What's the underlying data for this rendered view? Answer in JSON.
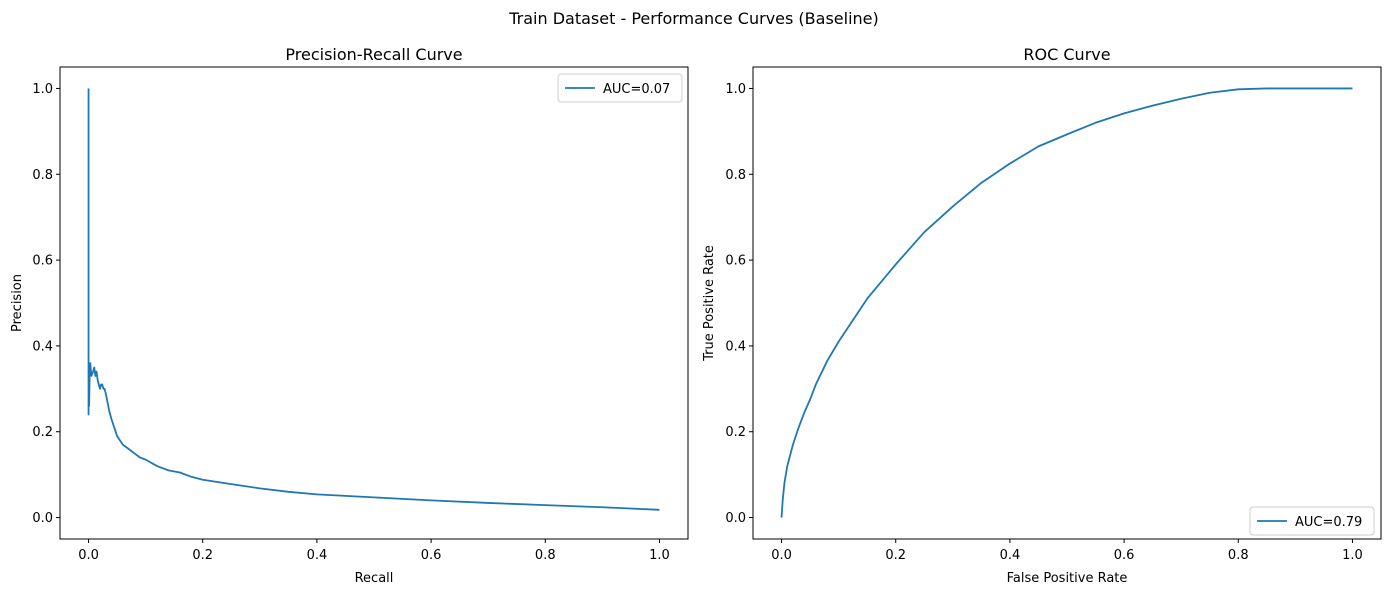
{
  "figure": {
    "title": "Train Dataset - Performance Curves (Baseline)"
  },
  "colors": {
    "series": "#1f77b4",
    "axes": "#000000",
    "legend_border": "#cccccc",
    "background": "#ffffff"
  },
  "chart_data": [
    {
      "type": "line",
      "title": "Precision-Recall Curve",
      "xlabel": "Recall",
      "ylabel": "Precision",
      "xlim": [
        -0.05,
        1.05
      ],
      "ylim": [
        -0.05,
        1.05
      ],
      "xticks": [
        0.0,
        0.2,
        0.4,
        0.6,
        0.8,
        1.0
      ],
      "yticks": [
        0.0,
        0.2,
        0.4,
        0.6,
        0.8,
        1.0
      ],
      "xtick_labels": [
        "0.0",
        "0.2",
        "0.4",
        "0.6",
        "0.8",
        "1.0"
      ],
      "ytick_labels": [
        "0.0",
        "0.2",
        "0.4",
        "0.6",
        "0.8",
        "1.0"
      ],
      "grid": false,
      "legend_position": "top-right",
      "series": [
        {
          "name": "AUC=0.07",
          "x": [
            0.0,
            0.0,
            0.0,
            0.001,
            0.002,
            0.003,
            0.005,
            0.008,
            0.01,
            0.012,
            0.014,
            0.016,
            0.018,
            0.02,
            0.022,
            0.024,
            0.026,
            0.028,
            0.03,
            0.033,
            0.036,
            0.04,
            0.045,
            0.05,
            0.06,
            0.07,
            0.08,
            0.09,
            0.1,
            0.12,
            0.14,
            0.16,
            0.18,
            0.2,
            0.25,
            0.3,
            0.35,
            0.4,
            0.5,
            0.6,
            0.7,
            0.8,
            0.9,
            1.0
          ],
          "y": [
            1.0,
            0.24,
            0.33,
            0.26,
            0.34,
            0.36,
            0.33,
            0.34,
            0.35,
            0.33,
            0.34,
            0.32,
            0.31,
            0.3,
            0.31,
            0.31,
            0.3,
            0.3,
            0.29,
            0.27,
            0.25,
            0.23,
            0.21,
            0.19,
            0.17,
            0.16,
            0.15,
            0.14,
            0.135,
            0.12,
            0.11,
            0.105,
            0.095,
            0.088,
            0.078,
            0.068,
            0.06,
            0.054,
            0.047,
            0.04,
            0.034,
            0.029,
            0.024,
            0.018
          ]
        }
      ]
    },
    {
      "type": "line",
      "title": "ROC Curve",
      "xlabel": "False Positive Rate",
      "ylabel": "True Positive Rate",
      "xlim": [
        -0.05,
        1.05
      ],
      "ylim": [
        -0.05,
        1.05
      ],
      "xticks": [
        0.0,
        0.2,
        0.4,
        0.6,
        0.8,
        1.0
      ],
      "yticks": [
        0.0,
        0.2,
        0.4,
        0.6,
        0.8,
        1.0
      ],
      "xtick_labels": [
        "0.0",
        "0.2",
        "0.4",
        "0.6",
        "0.8",
        "1.0"
      ],
      "ytick_labels": [
        "0.0",
        "0.2",
        "0.4",
        "0.6",
        "0.8",
        "1.0"
      ],
      "grid": false,
      "legend_position": "bottom-right",
      "series": [
        {
          "name": "AUC=0.79",
          "x": [
            0.0,
            0.002,
            0.005,
            0.01,
            0.02,
            0.03,
            0.04,
            0.05,
            0.06,
            0.08,
            0.1,
            0.12,
            0.15,
            0.2,
            0.25,
            0.3,
            0.35,
            0.4,
            0.45,
            0.5,
            0.55,
            0.6,
            0.65,
            0.7,
            0.75,
            0.8,
            0.85,
            0.9,
            0.95,
            1.0
          ],
          "y": [
            0.0,
            0.04,
            0.08,
            0.12,
            0.17,
            0.21,
            0.245,
            0.275,
            0.31,
            0.365,
            0.41,
            0.45,
            0.51,
            0.59,
            0.665,
            0.725,
            0.78,
            0.825,
            0.865,
            0.893,
            0.92,
            0.942,
            0.96,
            0.976,
            0.99,
            0.998,
            1.0,
            1.0,
            1.0,
            1.0
          ]
        }
      ]
    }
  ]
}
